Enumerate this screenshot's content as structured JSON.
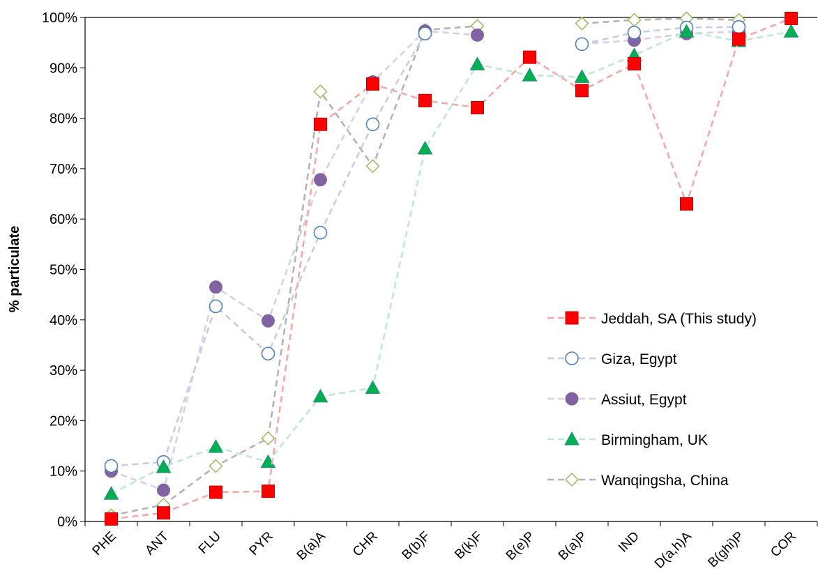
{
  "chart_data": {
    "type": "line",
    "ylabel": "% particulate",
    "xlabel": "",
    "ylim": [
      0,
      1
    ],
    "y_ticks": [
      0,
      0.1,
      0.2,
      0.3,
      0.4,
      0.5,
      0.6,
      0.7,
      0.8,
      0.9,
      1.0
    ],
    "y_tick_labels": [
      "0%",
      "10%",
      "20%",
      "30%",
      "40%",
      "50%",
      "60%",
      "70%",
      "80%",
      "90%",
      "100%"
    ],
    "categories": [
      "PHE",
      "ANT",
      "FLU",
      "PYR",
      "B(a)A",
      "CHR",
      "B(b)F",
      "B(k)F",
      "B(e)P",
      "B(a)P",
      "IND",
      "D(a,h)A",
      "B(ghi)P",
      "COR"
    ],
    "legend_position": "right",
    "grid": false,
    "series": [
      {
        "name": "Jeddah, SA (This study)",
        "marker": "square",
        "color": "#ff0000",
        "stroke": "#c00000",
        "line_color": "#f4a8a8",
        "values": [
          0.005,
          0.017,
          0.058,
          0.06,
          0.788,
          0.868,
          0.835,
          0.821,
          0.921,
          0.855,
          0.908,
          0.63,
          0.957,
          0.998
        ]
      },
      {
        "name": "Giza, Egypt",
        "marker": "circle-open",
        "color": "#ffffff",
        "stroke": "#4f81bd",
        "line_color": "#c5cde0",
        "values": [
          0.11,
          0.118,
          0.427,
          0.333,
          0.573,
          0.788,
          0.968,
          null,
          null,
          0.947,
          0.97,
          0.98,
          0.981,
          null
        ]
      },
      {
        "name": "Assiut, Egypt",
        "marker": "circle",
        "color": "#8064a2",
        "stroke": "#8064a2",
        "line_color": "#d6cfe6",
        "values": [
          0.1,
          0.062,
          0.465,
          0.398,
          0.678,
          0.872,
          0.973,
          0.965,
          null,
          0.947,
          0.955,
          0.968,
          0.972,
          null
        ]
      },
      {
        "name": "Birmingham, UK",
        "marker": "triangle",
        "color": "#00b050",
        "stroke": "#1f8c7a",
        "line_color": "#bfe8d2",
        "values": [
          0.055,
          0.108,
          0.148,
          0.118,
          0.248,
          0.265,
          0.74,
          0.907,
          0.885,
          0.882,
          0.925,
          0.972,
          0.953,
          0.972
        ]
      },
      {
        "name": "Wanqingsha, China",
        "marker": "diamond-open",
        "color": "#ffffff",
        "stroke": "#9bbb59",
        "line_color": "#b3b3b3",
        "values": [
          0.012,
          0.033,
          0.11,
          0.165,
          0.853,
          0.705,
          0.975,
          0.983,
          null,
          0.988,
          0.995,
          0.998,
          0.995,
          null
        ]
      }
    ]
  }
}
